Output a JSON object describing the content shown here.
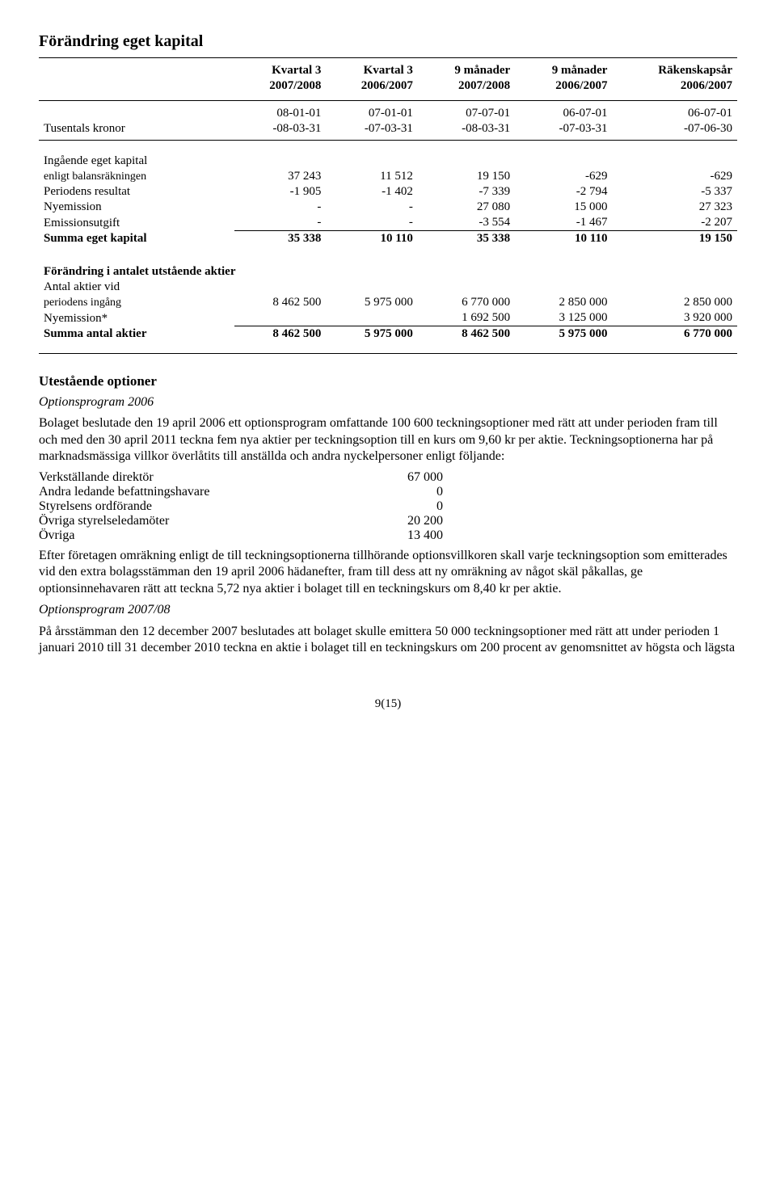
{
  "title": "Förändring eget kapital",
  "col_headers": {
    "c1a": "Kvartal 3",
    "c1b": "2007/2008",
    "c2a": "Kvartal 3",
    "c2b": "2006/2007",
    "c3a": "9 månader",
    "c3b": "2007/2008",
    "c4a": "9 månader",
    "c4b": "2006/2007",
    "c5a": "Räkenskapsår",
    "c5b": "2006/2007"
  },
  "periods": {
    "row_label": "Tusentals kronor",
    "r1": [
      "08-01-01",
      "07-01-01",
      "07-07-01",
      "06-07-01",
      "06-07-01"
    ],
    "r2": [
      "-08-03-31",
      "-07-03-31",
      "-08-03-31",
      "-07-03-31",
      "-07-06-30"
    ]
  },
  "equity_rows": [
    {
      "label": "Ingående eget kapital",
      "sub": "enligt balansräkningen",
      "v": [
        "37 243",
        "11 512",
        "19 150",
        "-629",
        "-629"
      ]
    },
    {
      "label": "Periodens resultat",
      "v": [
        "-1 905",
        "-1 402",
        "-7 339",
        "-2 794",
        "-5 337"
      ]
    },
    {
      "label": "Nyemission",
      "v": [
        "-",
        "-",
        "27 080",
        "15 000",
        "27 323"
      ]
    },
    {
      "label": "Emissionsutgift",
      "v": [
        "-",
        "-",
        "-3 554",
        "-1 467",
        "-2 207"
      ],
      "uline": true
    },
    {
      "label": "Summa eget kapital",
      "v": [
        "35 338",
        "10 110",
        "35 338",
        "10 110",
        "19 150"
      ],
      "bold": true
    }
  ],
  "shares": {
    "heading": "Förändring i antalet utstående aktier",
    "rows": [
      {
        "label": "Antal aktier vid",
        "sub": "periodens ingång",
        "v": [
          "8 462 500",
          "5 975 000",
          "6 770 000",
          "2 850 000",
          "2 850 000"
        ]
      },
      {
        "label": "Nyemission*",
        "v": [
          "",
          "",
          "1 692 500",
          "3 125 000",
          "3 920 000"
        ],
        "uline": true
      },
      {
        "label": "Summa antal aktier",
        "v": [
          "8 462 500",
          "5 975 000",
          "8 462 500",
          "5 975 000",
          "6 770 000"
        ],
        "bold": true
      }
    ]
  },
  "options": {
    "heading": "Utestående optioner",
    "p2006_title": "Optionsprogram 2006",
    "p2006_text": "Bolaget beslutade den 19 april 2006 ett optionsprogram omfattande 100 600 teckningsoptioner med rätt att under perioden fram till och med den 30 april 2011 teckna fem nya aktier per teckningsoption till en kurs om 9,60 kr per aktie. Teckningsoptionerna har på marknadsmässiga villkor överlåtits till anställda och andra nyckelpersoner enligt följande:",
    "alloc": [
      {
        "label": "Verkställande direktör",
        "v": "67 000"
      },
      {
        "label": "Andra ledande befattningshavare",
        "v": "0"
      },
      {
        "label": "Styrelsens ordförande",
        "v": "0"
      },
      {
        "label": "Övriga styrelseledamöter",
        "v": "20 200"
      },
      {
        "label": "Övriga",
        "v": "13 400"
      }
    ],
    "p2006_after": "Efter företagen omräkning enligt de till teckningsoptionerna tillhörande optionsvillkoren skall varje teckningsoption som emitterades vid den extra bolagsstämman den 19 april 2006 hädanefter, fram till dess att ny omräkning av något skäl påkallas, ge optionsinnehavaren rätt att teckna 5,72 nya aktier i bolaget till en teckningskurs om 8,40 kr per aktie.",
    "p2008_title": "Optionsprogram 2007/08",
    "p2008_text": "På årsstämman den 12 december 2007 beslutades att bolaget skulle emittera 50 000 teckningsoptioner med rätt att under perioden 1 januari 2010 till 31 december 2010 teckna en aktie i bolaget till en teckningskurs om 200 procent av genomsnittet av högsta och lägsta"
  },
  "page": "9(15)"
}
